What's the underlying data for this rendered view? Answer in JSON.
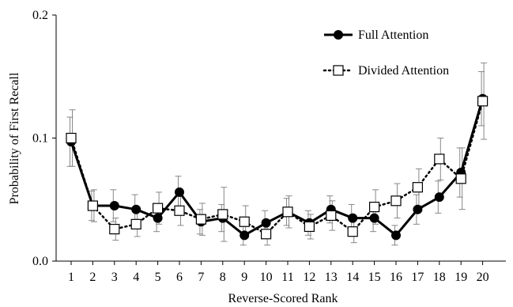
{
  "chart_data": {
    "type": "line",
    "title": "",
    "xlabel": "Reverse-Scored Rank",
    "ylabel": "Probability of First Recall",
    "x": [
      1,
      2,
      3,
      4,
      5,
      6,
      7,
      8,
      9,
      10,
      11,
      12,
      13,
      14,
      15,
      16,
      17,
      18,
      19,
      20
    ],
    "x_tick_labels": [
      "1",
      "2",
      "3",
      "4",
      "5",
      "6",
      "7",
      "8",
      "9",
      "10",
      "11",
      "12",
      "13",
      "14",
      "15",
      "16",
      "17",
      "18",
      "19",
      "20"
    ],
    "ylim": [
      0,
      0.2
    ],
    "y_ticks": [
      0,
      0.1,
      0.2
    ],
    "y_tick_labels": [
      "0.0",
      "0.1",
      "0.2"
    ],
    "grid": false,
    "legend_position": "top-right",
    "error_bars": true,
    "series": [
      {
        "name": "Full Attention",
        "style": "solid line, filled circle markers",
        "color": "#000000",
        "values": [
          0.097,
          0.045,
          0.045,
          0.042,
          0.035,
          0.056,
          0.032,
          0.035,
          0.021,
          0.031,
          0.04,
          0.031,
          0.042,
          0.035,
          0.035,
          0.021,
          0.042,
          0.052,
          0.072,
          0.132
        ],
        "errors": [
          0.02,
          0.012,
          0.013,
          0.012,
          0.011,
          0.013,
          0.01,
          0.011,
          0.008,
          0.01,
          0.011,
          0.01,
          0.011,
          0.011,
          0.011,
          0.008,
          0.012,
          0.013,
          0.02,
          0.022
        ]
      },
      {
        "name": "Divided Attention",
        "style": "dotted line, open square markers",
        "color": "#000000",
        "values": [
          0.1,
          0.045,
          0.026,
          0.03,
          0.043,
          0.041,
          0.034,
          0.038,
          0.032,
          0.022,
          0.04,
          0.028,
          0.037,
          0.024,
          0.044,
          0.049,
          0.06,
          0.083,
          0.067,
          0.13
        ],
        "errors": [
          0.023,
          0.013,
          0.009,
          0.01,
          0.013,
          0.012,
          0.013,
          0.022,
          0.013,
          0.009,
          0.013,
          0.01,
          0.012,
          0.009,
          0.014,
          0.014,
          0.015,
          0.017,
          0.025,
          0.031
        ]
      }
    ]
  }
}
